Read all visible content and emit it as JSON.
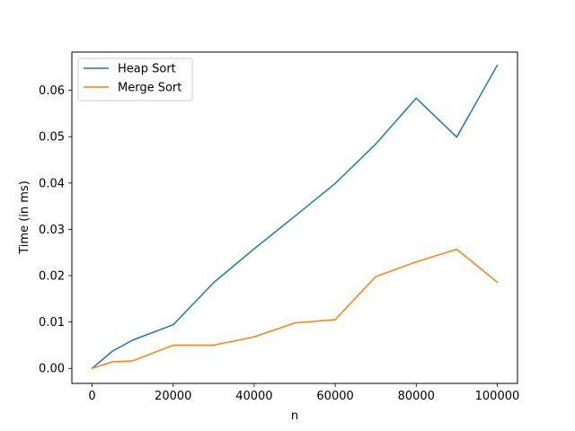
{
  "chart_data": {
    "type": "line",
    "title": "",
    "xlabel": "n",
    "ylabel": "Time (in ms)",
    "xlim": [
      -5000,
      105000
    ],
    "ylim": [
      -0.00325,
      0.06825
    ],
    "xticks": [
      0,
      20000,
      40000,
      60000,
      80000,
      100000
    ],
    "xtick_labels": [
      "0",
      "20000",
      "40000",
      "60000",
      "80000",
      "100000"
    ],
    "yticks": [
      0,
      0.01,
      0.02,
      0.03,
      0.04,
      0.05,
      0.06
    ],
    "ytick_labels": [
      "0.00",
      "0.01",
      "0.02",
      "0.03",
      "0.04",
      "0.05",
      "0.06"
    ],
    "grid": false,
    "legend_position": "top-left",
    "x": [
      0,
      5000,
      10000,
      20000,
      30000,
      40000,
      50000,
      60000,
      70000,
      80000,
      90000,
      100000
    ],
    "series": [
      {
        "name": "Heap Sort",
        "color": "#1f77b4",
        "values": [
          0.0,
          0.0037,
          0.0061,
          0.0094,
          0.0185,
          0.0258,
          0.0328,
          0.0399,
          0.0484,
          0.0583,
          0.0499,
          0.0654
        ]
      },
      {
        "name": "Merge Sort",
        "color": "#ff7f0e",
        "values": [
          0.0,
          0.0014,
          0.0016,
          0.005,
          0.005,
          0.0068,
          0.0098,
          0.0105,
          0.0198,
          0.023,
          0.0257,
          0.0186
        ]
      }
    ]
  }
}
